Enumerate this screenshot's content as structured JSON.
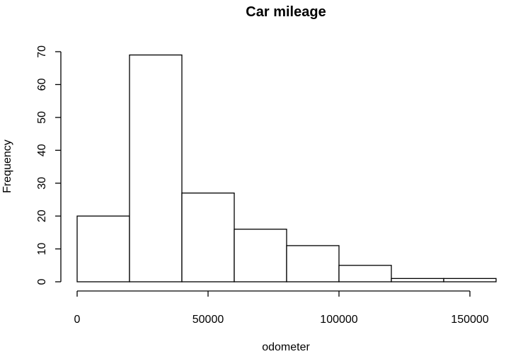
{
  "chart_data": {
    "type": "bar",
    "subtype": "histogram",
    "title": "Car mileage",
    "xlabel": "odometer",
    "ylabel": "Frequency",
    "bins": [
      {
        "start": 0,
        "end": 20000,
        "count": 20
      },
      {
        "start": 20000,
        "end": 40000,
        "count": 69
      },
      {
        "start": 40000,
        "end": 60000,
        "count": 27
      },
      {
        "start": 60000,
        "end": 80000,
        "count": 16
      },
      {
        "start": 80000,
        "end": 100000,
        "count": 11
      },
      {
        "start": 100000,
        "end": 120000,
        "count": 5
      },
      {
        "start": 120000,
        "end": 140000,
        "count": 1
      },
      {
        "start": 140000,
        "end": 160000,
        "count": 1
      }
    ],
    "xlim": [
      0,
      160000
    ],
    "ylim": [
      0,
      70
    ],
    "xticks": [
      0,
      50000,
      100000,
      150000
    ],
    "xtick_labels": [
      "0",
      "50000",
      "100000",
      "150000"
    ],
    "yticks": [
      0,
      10,
      20,
      30,
      40,
      50,
      60,
      70
    ],
    "ytick_labels": [
      "0",
      "10",
      "20",
      "30",
      "40",
      "50",
      "60",
      "70"
    ],
    "grid": false,
    "legend": "none",
    "bar_fill": "#ffffff",
    "bar_stroke": "#000000"
  }
}
